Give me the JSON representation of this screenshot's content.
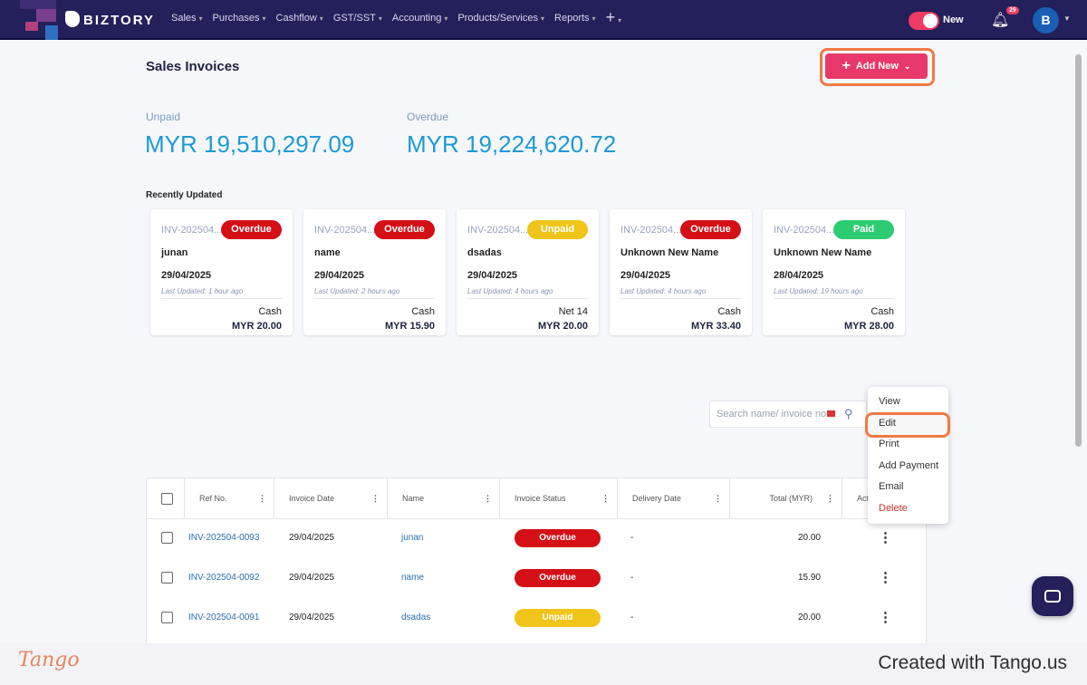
{
  "nav": {
    "brand": "BIZTORY",
    "items": [
      "Sales",
      "Purchases",
      "Cashflow",
      "GST/SST",
      "Accounting",
      "Products/Services",
      "Reports",
      "+"
    ],
    "toggle_label": "New",
    "notif_count": "29",
    "avatar": "B"
  },
  "page": {
    "title": "Sales Invoices",
    "add_new": "Add New"
  },
  "kpis": {
    "unpaid_label": "Unpaid",
    "unpaid_value": "MYR 19,510,297.09",
    "overdue_label": "Overdue",
    "overdue_value": "MYR 19,224,620.72"
  },
  "recent": {
    "title": "Recently Updated",
    "cards": [
      {
        "ref": "INV-202504...",
        "status": "Overdue",
        "name": "junan",
        "date": "29/04/2025",
        "updated": "Last Updated: 1 hour ago",
        "term": "Cash",
        "amount": "MYR 20.00"
      },
      {
        "ref": "INV-202504...",
        "status": "Overdue",
        "name": "name",
        "date": "29/04/2025",
        "updated": "Last Updated: 2 hours ago",
        "term": "Cash",
        "amount": "MYR 15.90"
      },
      {
        "ref": "INV-202504...",
        "status": "Unpaid",
        "name": "dsadas",
        "date": "29/04/2025",
        "updated": "Last Updated: 4 hours ago",
        "term": "Net 14",
        "amount": "MYR 20.00"
      },
      {
        "ref": "INV-202504...",
        "status": "Overdue",
        "name": "Unknown New Name",
        "date": "29/04/2025",
        "updated": "Last Updated: 4 hours ago",
        "term": "Cash",
        "amount": "MYR 33.40"
      },
      {
        "ref": "INV-202504...",
        "status": "Paid",
        "name": "Unknown New Name",
        "date": "28/04/2025",
        "updated": "Last Updated: 19 hours ago",
        "term": "Cash",
        "amount": "MYR 28.00"
      }
    ]
  },
  "colors": {
    "Overdue": "#d40f16",
    "Unpaid": "#f0c419",
    "Paid": "#2ecc71",
    "accent": "#e8386a",
    "nav": "#23205b"
  },
  "search": {
    "placeholder": "Search name/ invoice no."
  },
  "table": {
    "columns": [
      "Ref No.",
      "Invoice Date",
      "Name",
      "Invoice Status",
      "Delivery Date",
      "Total (MYR)",
      "Act"
    ],
    "rows": [
      {
        "ref": "INV-202504-0093",
        "date": "29/04/2025",
        "name": "junan",
        "status": "Overdue",
        "delivery": "-",
        "total": "20.00"
      },
      {
        "ref": "INV-202504-0092",
        "date": "29/04/2025",
        "name": "name",
        "status": "Overdue",
        "delivery": "-",
        "total": "15.90"
      },
      {
        "ref": "INV-202504-0091",
        "date": "29/04/2025",
        "name": "dsadas",
        "status": "Unpaid",
        "delivery": "-",
        "total": "20.00"
      }
    ]
  },
  "context_menu": [
    "View",
    "Edit",
    "Print",
    "Add Payment",
    "Email",
    "Delete"
  ],
  "footer": {
    "logo": "Tango",
    "text": "Created with Tango.us"
  }
}
